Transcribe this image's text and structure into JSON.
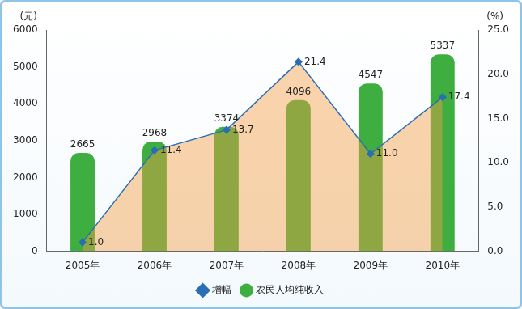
{
  "chart_data": {
    "type": "bar",
    "categories": [
      "2005年",
      "2006年",
      "2007年",
      "2008年",
      "2009年",
      "2010年"
    ],
    "series": [
      {
        "name": "农民人均纯收入",
        "type": "bar",
        "color": "#3dae3f",
        "marker": "circle",
        "values": [
          2665,
          2968,
          3374,
          4096,
          4547,
          5337
        ]
      },
      {
        "name": "增幅",
        "type": "line",
        "color": "#2a6db5",
        "marker": "diamond",
        "axis": "y2",
        "values": [
          1.0,
          11.4,
          13.7,
          21.4,
          11.0,
          17.4
        ],
        "value_labels": [
          "1.0",
          "11.4",
          "13.7",
          "21.4",
          "11.0",
          "17.4"
        ]
      }
    ],
    "ylabel": "(元)",
    "y2label": "(%)",
    "ylim": [
      0,
      6000
    ],
    "yticks": [
      0,
      1000,
      2000,
      3000,
      4000,
      5000,
      6000
    ],
    "y2lim": [
      0,
      25
    ],
    "y2ticks": [
      {
        "value": 0,
        "label": "0.0"
      },
      {
        "value": 5,
        "label": "5.0"
      },
      {
        "value": 10,
        "label": "10.0"
      },
      {
        "value": 15,
        "label": "15.0"
      },
      {
        "value": 20,
        "label": "20.0"
      },
      {
        "value": 25,
        "label": "25.0"
      }
    ],
    "grid": false,
    "legend": "bottom",
    "data_labels": true
  }
}
